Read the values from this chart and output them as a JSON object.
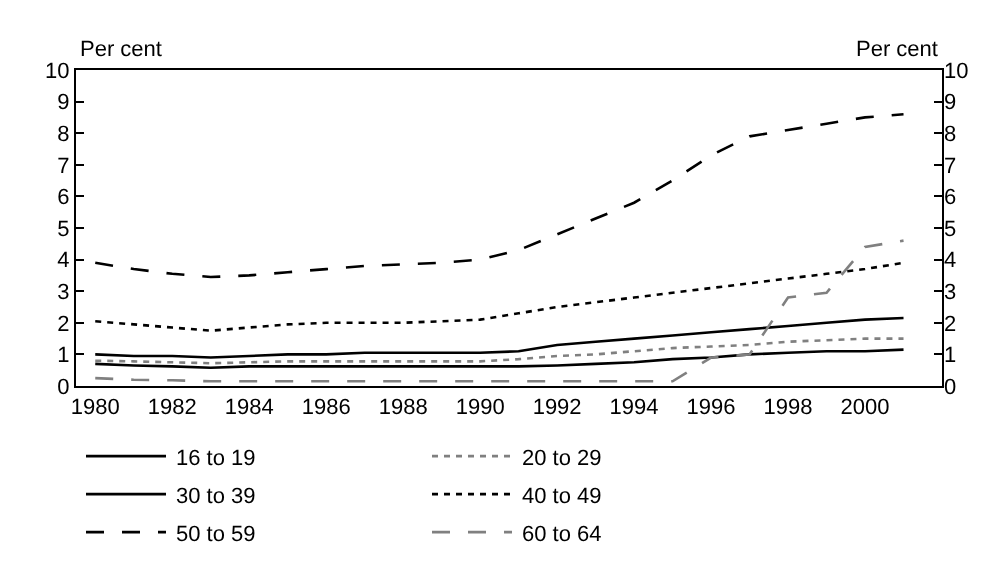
{
  "chart_data": {
    "type": "line",
    "ylabel": "Per cent",
    "y2label": "Per cent",
    "x": [
      1980,
      1981,
      1982,
      1983,
      1984,
      1985,
      1986,
      1987,
      1988,
      1989,
      1990,
      1991,
      1992,
      1993,
      1994,
      1995,
      1996,
      1997,
      1998,
      1999,
      2000,
      2001
    ],
    "xlim": [
      1979.5,
      2002
    ],
    "xticks": [
      1980,
      1982,
      1984,
      1986,
      1988,
      1990,
      1992,
      1994,
      1996,
      1998,
      2000
    ],
    "ylim": [
      0,
      10
    ],
    "yticks": [
      0,
      1,
      2,
      3,
      4,
      5,
      6,
      7,
      8,
      9,
      10
    ],
    "y2lim": [
      0,
      10
    ],
    "y2ticks": [
      0,
      1,
      2,
      3,
      4,
      5,
      6,
      7,
      8,
      9,
      10
    ],
    "grid": false,
    "legend": "bottom",
    "marker": "none",
    "series": [
      {
        "name": "16 to 19",
        "color": "#000000",
        "line_style": "solid",
        "values": [
          0.7,
          0.65,
          0.62,
          0.58,
          0.62,
          0.62,
          0.62,
          0.62,
          0.62,
          0.62,
          0.62,
          0.62,
          0.65,
          0.7,
          0.75,
          0.85,
          0.9,
          1.0,
          1.05,
          1.1,
          1.1,
          1.15
        ]
      },
      {
        "name": "20 to 29",
        "color": "#808080",
        "line_style": "dotted",
        "values": [
          0.8,
          0.78,
          0.75,
          0.72,
          0.75,
          0.78,
          0.78,
          0.78,
          0.78,
          0.78,
          0.78,
          0.85,
          0.95,
          1.0,
          1.1,
          1.2,
          1.25,
          1.3,
          1.4,
          1.45,
          1.5,
          1.5
        ]
      },
      {
        "name": "30 to 39",
        "color": "#000000",
        "line_style": "solid",
        "values": [
          1.0,
          0.95,
          0.95,
          0.9,
          0.95,
          1.0,
          1.0,
          1.05,
          1.05,
          1.05,
          1.05,
          1.1,
          1.3,
          1.4,
          1.5,
          1.6,
          1.7,
          1.8,
          1.9,
          2.0,
          2.1,
          2.15
        ]
      },
      {
        "name": "40 to 49",
        "color": "#000000",
        "line_style": "dotted",
        "values": [
          2.05,
          1.95,
          1.85,
          1.75,
          1.85,
          1.95,
          2.0,
          2.0,
          2.0,
          2.05,
          2.1,
          2.3,
          2.5,
          2.65,
          2.8,
          2.95,
          3.1,
          3.25,
          3.4,
          3.55,
          3.7,
          3.9
        ]
      },
      {
        "name": "50 to 59",
        "color": "#000000",
        "line_style": "dashed",
        "values": [
          3.9,
          3.7,
          3.55,
          3.45,
          3.5,
          3.6,
          3.7,
          3.8,
          3.85,
          3.9,
          4.0,
          4.3,
          4.8,
          5.3,
          5.8,
          6.5,
          7.3,
          7.9,
          8.1,
          8.3,
          8.5,
          8.6
        ]
      },
      {
        "name": "60 to 64",
        "color": "#808080",
        "line_style": "dashed",
        "values": [
          0.25,
          0.2,
          0.18,
          0.15,
          0.15,
          0.15,
          0.15,
          0.15,
          0.15,
          0.15,
          0.15,
          0.15,
          0.15,
          0.15,
          0.15,
          0.15,
          0.9,
          1.0,
          2.8,
          2.95,
          4.4,
          4.6
        ]
      }
    ]
  }
}
